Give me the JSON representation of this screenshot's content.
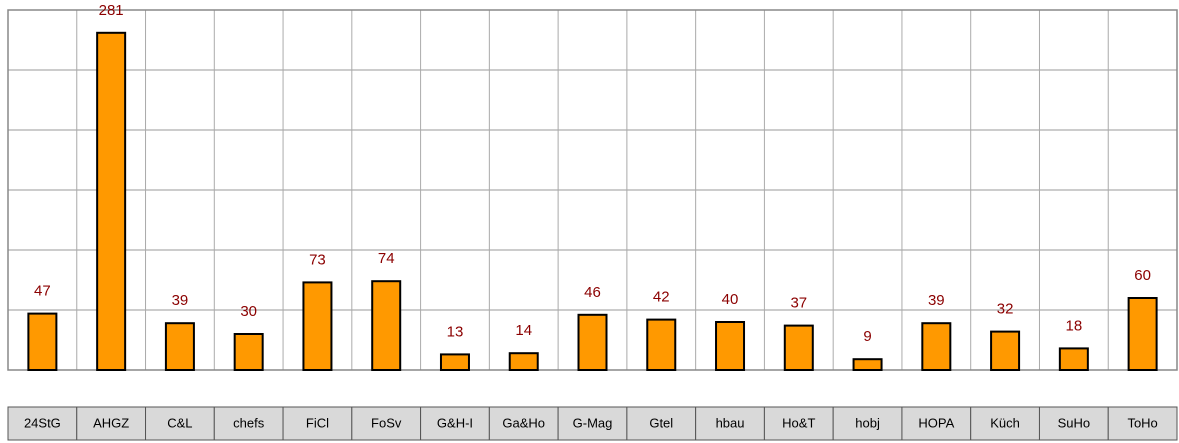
{
  "chart_data": {
    "type": "bar",
    "categories": [
      "24StG",
      "AHGZ",
      "C&L",
      "chefs",
      "FiCl",
      "FoSv",
      "G&H-I",
      "Ga&Ho",
      "G-Mag",
      "Gtel",
      "hbau",
      "Ho&T",
      "hobj",
      "HOPA",
      "Küch",
      "SuHo",
      "ToHo"
    ],
    "values": [
      47,
      281,
      39,
      30,
      73,
      74,
      13,
      14,
      46,
      42,
      40,
      37,
      9,
      39,
      32,
      18,
      60
    ],
    "color": "#ff9900",
    "ylim": [
      0,
      300
    ],
    "yticks": [
      0,
      50,
      100,
      150,
      200,
      250,
      300
    ],
    "grid": true
  }
}
